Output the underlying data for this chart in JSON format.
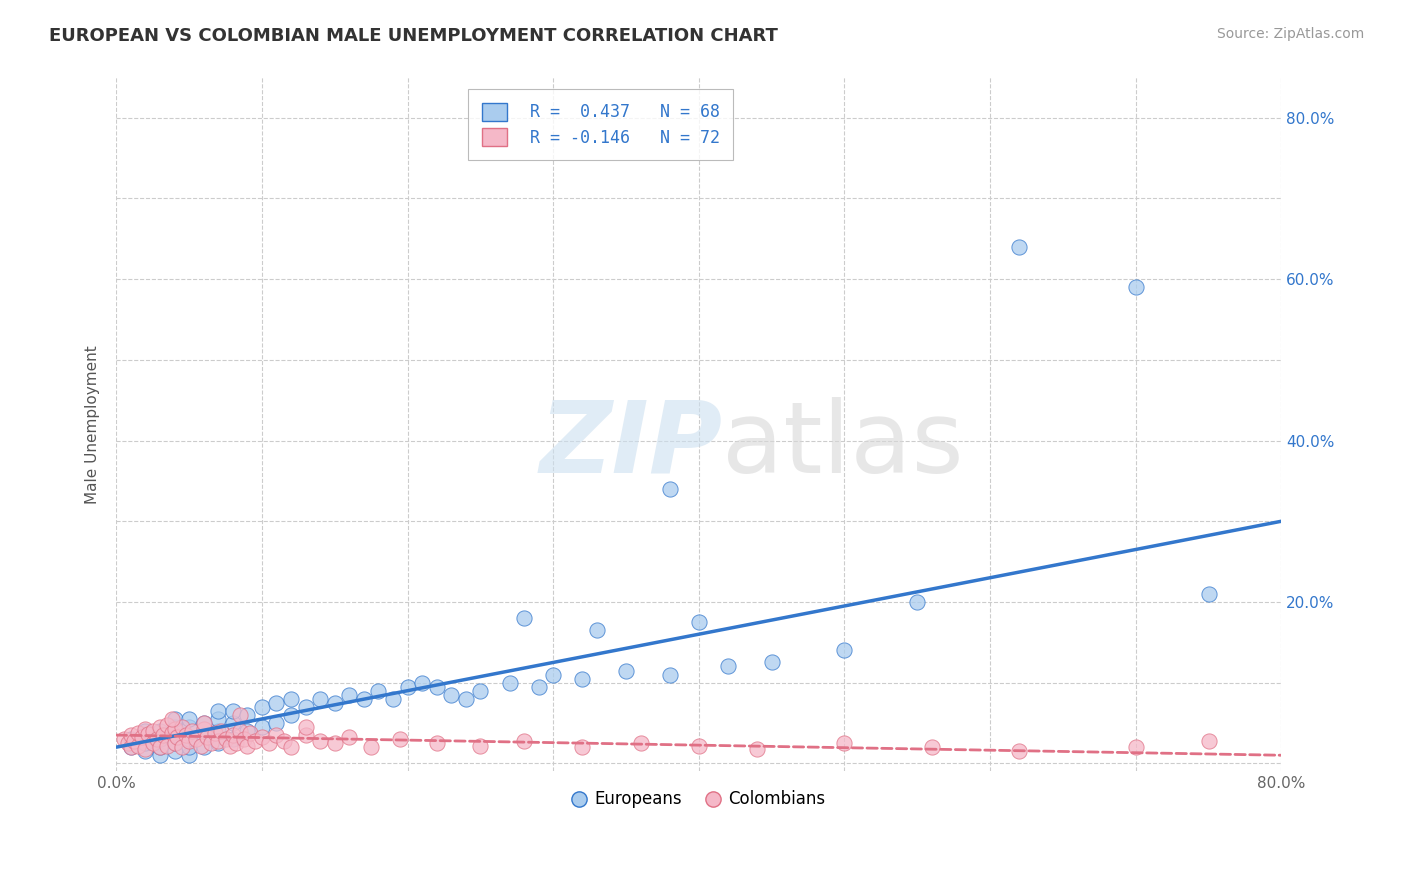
{
  "title": "EUROPEAN VS COLOMBIAN MALE UNEMPLOYMENT CORRELATION CHART",
  "source": "Source: ZipAtlas.com",
  "ylabel": "Male Unemployment",
  "xlim": [
    0.0,
    0.8
  ],
  "ylim": [
    -0.01,
    0.85
  ],
  "xtick_vals": [
    0.0,
    0.1,
    0.2,
    0.3,
    0.4,
    0.5,
    0.6,
    0.7,
    0.8
  ],
  "ytick_vals": [
    0.0,
    0.1,
    0.2,
    0.3,
    0.4,
    0.5,
    0.6,
    0.7,
    0.8
  ],
  "background_color": "#ffffff",
  "grid_color": "#cccccc",
  "europeans_color": "#aaccee",
  "colombians_color": "#f5b8c8",
  "europeans_line_color": "#3377cc",
  "colombians_line_color": "#e07085",
  "legend_R1": "R =  0.437",
  "legend_N1": "N = 68",
  "legend_R2": "R = -0.146",
  "legend_N2": "N = 72",
  "eu_trend": [
    0.0,
    0.8,
    0.02,
    0.3
  ],
  "co_trend": [
    0.0,
    0.8,
    0.035,
    0.01
  ],
  "europeans_scatter_x": [
    0.01,
    0.01,
    0.02,
    0.02,
    0.02,
    0.02,
    0.03,
    0.03,
    0.03,
    0.03,
    0.04,
    0.04,
    0.04,
    0.04,
    0.04,
    0.05,
    0.05,
    0.05,
    0.05,
    0.05,
    0.06,
    0.06,
    0.06,
    0.07,
    0.07,
    0.07,
    0.07,
    0.08,
    0.08,
    0.08,
    0.09,
    0.09,
    0.1,
    0.1,
    0.11,
    0.11,
    0.12,
    0.12,
    0.13,
    0.14,
    0.15,
    0.16,
    0.17,
    0.18,
    0.19,
    0.2,
    0.21,
    0.22,
    0.23,
    0.24,
    0.25,
    0.27,
    0.29,
    0.3,
    0.32,
    0.35,
    0.38,
    0.42,
    0.45,
    0.5,
    0.28,
    0.33,
    0.4,
    0.55,
    0.62,
    0.7,
    0.75,
    0.38
  ],
  "europeans_scatter_y": [
    0.02,
    0.03,
    0.015,
    0.025,
    0.035,
    0.04,
    0.01,
    0.02,
    0.03,
    0.04,
    0.015,
    0.025,
    0.035,
    0.045,
    0.055,
    0.01,
    0.02,
    0.03,
    0.045,
    0.055,
    0.02,
    0.035,
    0.05,
    0.025,
    0.04,
    0.055,
    0.065,
    0.03,
    0.05,
    0.065,
    0.04,
    0.06,
    0.045,
    0.07,
    0.05,
    0.075,
    0.06,
    0.08,
    0.07,
    0.08,
    0.075,
    0.085,
    0.08,
    0.09,
    0.08,
    0.095,
    0.1,
    0.095,
    0.085,
    0.08,
    0.09,
    0.1,
    0.095,
    0.11,
    0.105,
    0.115,
    0.11,
    0.12,
    0.125,
    0.14,
    0.18,
    0.165,
    0.175,
    0.2,
    0.64,
    0.59,
    0.21,
    0.34
  ],
  "colombians_scatter_x": [
    0.005,
    0.008,
    0.01,
    0.01,
    0.012,
    0.015,
    0.015,
    0.018,
    0.02,
    0.02,
    0.022,
    0.025,
    0.025,
    0.028,
    0.03,
    0.03,
    0.032,
    0.035,
    0.035,
    0.038,
    0.04,
    0.04,
    0.042,
    0.045,
    0.045,
    0.048,
    0.05,
    0.052,
    0.055,
    0.058,
    0.06,
    0.062,
    0.065,
    0.068,
    0.07,
    0.072,
    0.075,
    0.078,
    0.08,
    0.082,
    0.085,
    0.088,
    0.09,
    0.092,
    0.095,
    0.1,
    0.105,
    0.11,
    0.115,
    0.12,
    0.13,
    0.14,
    0.15,
    0.16,
    0.175,
    0.195,
    0.22,
    0.25,
    0.28,
    0.32,
    0.36,
    0.4,
    0.44,
    0.5,
    0.56,
    0.62,
    0.7,
    0.75,
    0.038,
    0.06,
    0.085,
    0.13
  ],
  "colombians_scatter_y": [
    0.03,
    0.025,
    0.02,
    0.035,
    0.028,
    0.022,
    0.038,
    0.032,
    0.018,
    0.042,
    0.036,
    0.025,
    0.04,
    0.03,
    0.02,
    0.045,
    0.035,
    0.022,
    0.048,
    0.038,
    0.025,
    0.042,
    0.032,
    0.02,
    0.045,
    0.035,
    0.028,
    0.04,
    0.03,
    0.022,
    0.042,
    0.032,
    0.025,
    0.038,
    0.028,
    0.04,
    0.03,
    0.022,
    0.035,
    0.025,
    0.04,
    0.03,
    0.022,
    0.038,
    0.028,
    0.032,
    0.025,
    0.035,
    0.028,
    0.02,
    0.035,
    0.028,
    0.025,
    0.032,
    0.02,
    0.03,
    0.025,
    0.022,
    0.028,
    0.02,
    0.025,
    0.022,
    0.018,
    0.025,
    0.02,
    0.015,
    0.02,
    0.028,
    0.055,
    0.05,
    0.06,
    0.045
  ]
}
